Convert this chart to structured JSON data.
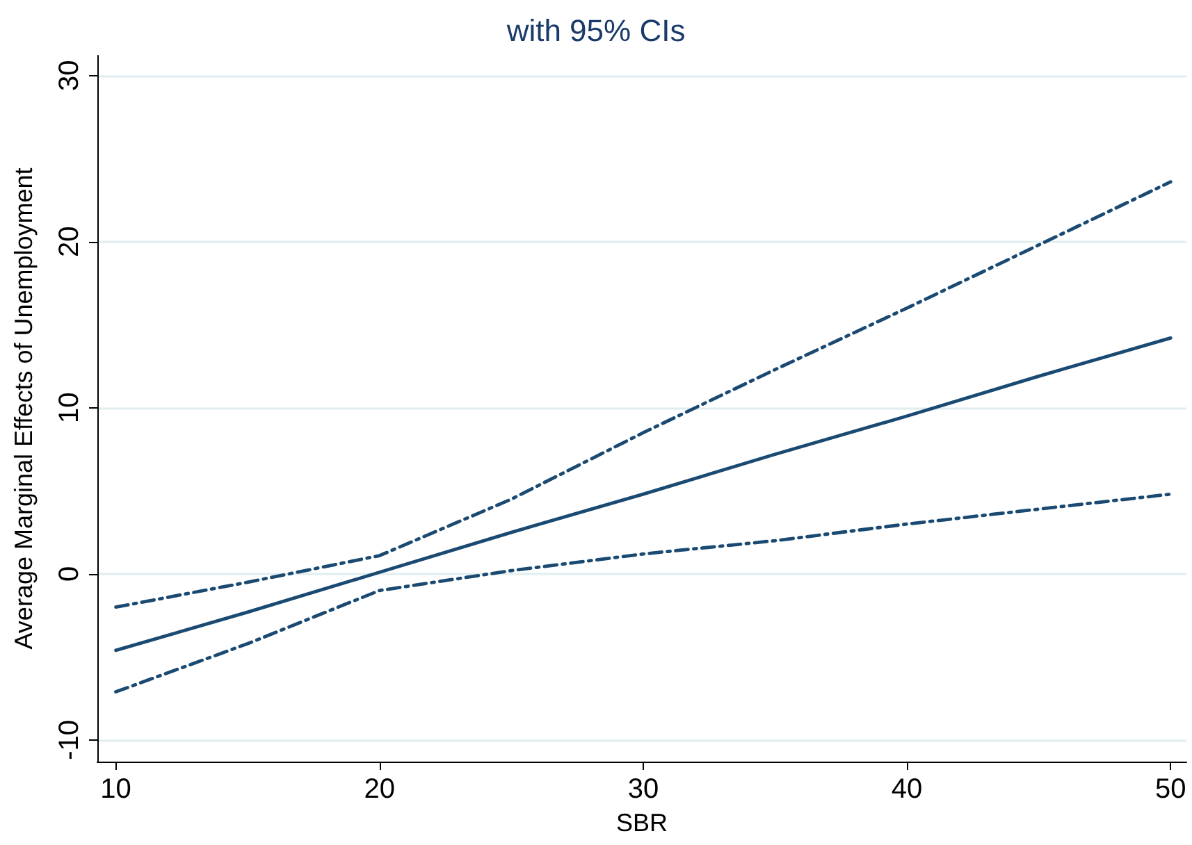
{
  "chart_data": {
    "type": "line",
    "title": "with 95% CIs",
    "xlabel": "SBR",
    "ylabel": "Average Marginal Effects of Unemployment",
    "x": [
      10,
      15,
      20,
      25,
      30,
      35,
      40,
      45,
      50
    ],
    "series": [
      {
        "color": "#1a4a72",
        "line_style": "dashdot",
        "values": [
          -2.0,
          -0.5,
          1.1,
          4.5,
          8.5,
          12.3,
          16.0,
          19.8,
          23.6
        ]
      },
      {
        "color": "#1a4a72",
        "line_style": "solid",
        "values": [
          -4.6,
          -2.3,
          0.1,
          2.5,
          4.8,
          7.2,
          9.5,
          11.9,
          14.2
        ]
      },
      {
        "color": "#1a4a72",
        "line_style": "dashdot",
        "values": [
          -7.1,
          -4.2,
          -1.0,
          0.2,
          1.2,
          2.0,
          3.0,
          3.9,
          4.8
        ]
      }
    ],
    "xlim": [
      9.3,
      50.6
    ],
    "xticks": [
      10,
      20,
      30,
      40,
      50
    ],
    "ylim": [
      -11.3,
      31.2
    ],
    "yticks": [
      -10,
      0,
      10,
      20,
      30
    ],
    "grid": "y",
    "marker": "none"
  }
}
